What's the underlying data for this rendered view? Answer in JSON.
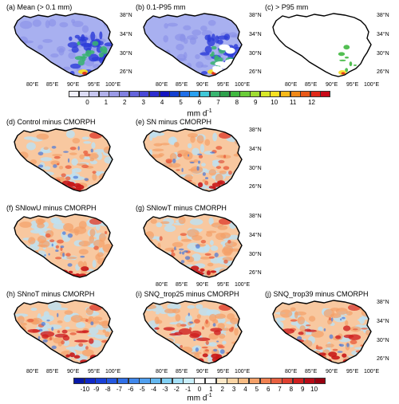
{
  "panels": [
    {
      "id": "a",
      "title": "(a) Mean (> 0.1 mm)",
      "kind": "mean"
    },
    {
      "id": "b",
      "title": "(b) 0.1-P95 mm",
      "kind": "mean2"
    },
    {
      "id": "c",
      "title": "(c) > P95 mm",
      "kind": "p95"
    },
    {
      "id": "d",
      "title": "(d) Control minus CMORPH",
      "kind": "diff"
    },
    {
      "id": "e",
      "title": "(e) SN minus CMORPH",
      "kind": "diff"
    },
    {
      "id": "f",
      "title": "(f) SNlowU minus CMORPH",
      "kind": "diff"
    },
    {
      "id": "g",
      "title": "(g) SNlowT minus CMORPH",
      "kind": "diff"
    },
    {
      "id": "h",
      "title": "(h) SNnoT minus CMORPH",
      "kind": "diff2"
    },
    {
      "id": "i",
      "title": "(i) SNQ_trop25 minus CMORPH",
      "kind": "diff2"
    },
    {
      "id": "j",
      "title": "(j) SNQ_trop39 minus CMORPH",
      "kind": "diff2"
    }
  ],
  "lat_labels": [
    "38°N",
    "34°N",
    "30°N",
    "26°N"
  ],
  "lon_labels": [
    "80°E",
    "85°E",
    "90°E",
    "95°E",
    "100°E"
  ],
  "colorbar_top": {
    "ticks": [
      "0",
      "1",
      "2",
      "3",
      "4",
      "5",
      "6",
      "7",
      "8",
      "9",
      "10",
      "11",
      "12"
    ],
    "unit": "mm d",
    "unit_sup": "-1",
    "colors": [
      "#f1f1fb",
      "#dcdcf5",
      "#c6c6f0",
      "#b0b0ea",
      "#9a9ae6",
      "#8080e0",
      "#6464dc",
      "#4848d8",
      "#2c2cd0",
      "#1414c0",
      "#1440d0",
      "#1e6ee8",
      "#2aa0f0",
      "#40c8d8",
      "#38b470",
      "#2ea04c",
      "#40b840",
      "#6acc38",
      "#a0dc30",
      "#d8e828",
      "#f8e020",
      "#f8b818",
      "#f08818",
      "#e85818",
      "#e02818",
      "#c80818"
    ]
  },
  "colorbar_bottom": {
    "ticks": [
      "-10",
      "-9",
      "-8",
      "-7",
      "-6",
      "-5",
      "-4",
      "-3",
      "-2",
      "-1",
      "0",
      "1",
      "2",
      "3",
      "4",
      "5",
      "6",
      "7",
      "8",
      "9",
      "10"
    ],
    "unit": "mm d",
    "unit_sup": "-1",
    "colors": [
      "#0818a8",
      "#1028c8",
      "#1840d8",
      "#2458e0",
      "#3070e8",
      "#4088ec",
      "#50a0f0",
      "#64b8f0",
      "#80d0f4",
      "#a4e0f8",
      "#c8eefa",
      "#ffffff",
      "#ffffff",
      "#fce8c8",
      "#fad4a4",
      "#f8bc84",
      "#f4a068",
      "#f08050",
      "#e86040",
      "#e04030",
      "#d02020",
      "#b80c18",
      "#980010"
    ]
  },
  "colors": {
    "outline": "#000000",
    "mean_base": "#a8b0f0",
    "mean_hi": "#2c3cd8",
    "diff_warm": "#f8c8a0",
    "diff_cool": "#c0e0f0",
    "diff_hot": "#c81818",
    "diff_blue": "#4878d8"
  }
}
